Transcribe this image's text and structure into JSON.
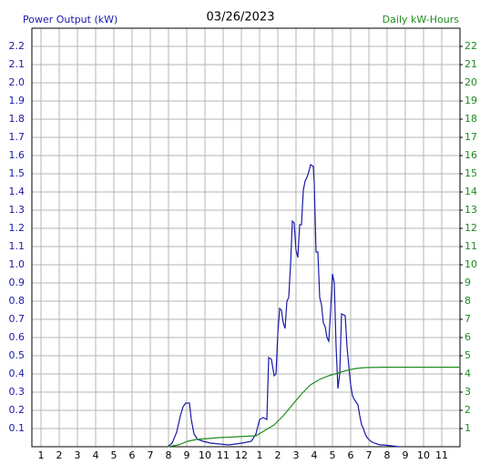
{
  "chart_data": {
    "type": "line",
    "title": "03/26/2023",
    "y_label": "Power Output (kW)",
    "y2_label": "Daily kW-Hours",
    "y_color": "#1a1aa8",
    "y2_color": "#1e8c1e",
    "grid": true,
    "xlim": [
      0.5,
      24
    ],
    "xticks": [
      1,
      2,
      3,
      4,
      5,
      6,
      7,
      8,
      9,
      10,
      11,
      12,
      {
        "value": 13,
        "label": "1"
      },
      {
        "value": 14,
        "label": "2"
      },
      {
        "value": 15,
        "label": "3"
      },
      {
        "value": 16,
        "label": "4"
      },
      {
        "value": 17,
        "label": "5"
      },
      {
        "value": 18,
        "label": "6"
      },
      {
        "value": 19,
        "label": "7"
      },
      {
        "value": 20,
        "label": "8"
      },
      {
        "value": 21,
        "label": "9"
      },
      {
        "value": 22,
        "label": "10"
      },
      {
        "value": 23,
        "label": "11"
      }
    ],
    "ylim": [
      0,
      2.3
    ],
    "yticks": [
      0.1,
      0.2,
      0.3,
      0.4,
      0.5,
      0.6,
      0.7,
      0.8,
      0.9,
      {
        "value": 1.0,
        "label": "1.0"
      },
      1.1,
      1.2,
      1.3,
      1.4,
      1.5,
      1.6,
      1.7,
      1.8,
      1.9,
      {
        "value": 2.0,
        "label": "2.0"
      },
      2.1,
      2.2
    ],
    "y2lim": [
      0,
      23
    ],
    "y2ticks": [
      1,
      2,
      3,
      4,
      5,
      6,
      7,
      8,
      9,
      10,
      11,
      12,
      13,
      14,
      15,
      16,
      17,
      18,
      19,
      20,
      21,
      22
    ],
    "series": [
      {
        "color": "#1a1aa8",
        "axis": "y",
        "x": [
          7.95,
          8.2,
          8.45,
          8.65,
          8.8,
          8.95,
          9.15,
          9.25,
          9.4,
          9.6,
          9.9,
          10.3,
          11.3,
          12.05,
          12.55,
          12.8,
          13.0,
          13.2,
          13.4,
          13.5,
          13.65,
          13.8,
          13.9,
          14.0,
          14.1,
          14.2,
          14.3,
          14.4,
          14.5,
          14.6,
          14.7,
          14.8,
          14.9,
          15.0,
          15.1,
          15.2,
          15.3,
          15.4,
          15.5,
          15.6,
          15.7,
          15.8,
          15.95,
          16.0,
          16.1,
          16.2,
          16.3,
          16.4,
          16.5,
          16.6,
          16.7,
          16.8,
          16.9,
          17.0,
          17.1,
          17.2,
          17.3,
          17.4,
          17.5,
          17.7,
          17.8,
          17.9,
          18.0,
          18.1,
          18.2,
          18.4,
          18.5,
          18.6,
          18.7,
          18.8,
          18.9,
          19.1,
          19.3,
          19.6,
          19.8,
          20.65
        ],
        "values": [
          0,
          0.02,
          0.08,
          0.17,
          0.22,
          0.24,
          0.24,
          0.15,
          0.07,
          0.04,
          0.03,
          0.02,
          0.01,
          0.02,
          0.03,
          0.07,
          0.15,
          0.16,
          0.15,
          0.49,
          0.48,
          0.39,
          0.4,
          0.62,
          0.76,
          0.75,
          0.68,
          0.65,
          0.8,
          0.82,
          1.0,
          1.24,
          1.23,
          1.08,
          1.04,
          1.22,
          1.22,
          1.41,
          1.46,
          1.48,
          1.51,
          1.55,
          1.54,
          1.45,
          1.07,
          1.07,
          0.82,
          0.78,
          0.68,
          0.66,
          0.6,
          0.58,
          0.75,
          0.95,
          0.9,
          0.55,
          0.32,
          0.4,
          0.73,
          0.72,
          0.55,
          0.44,
          0.34,
          0.28,
          0.26,
          0.23,
          0.17,
          0.12,
          0.1,
          0.07,
          0.05,
          0.03,
          0.02,
          0.01,
          0.01,
          0
        ]
      },
      {
        "color": "#1e8c1e",
        "axis": "y2",
        "x": [
          7.95,
          8.55,
          9.05,
          9.55,
          10.8,
          12.8,
          13.3,
          13.8,
          14.3,
          14.8,
          15.3,
          15.8,
          16.3,
          16.8,
          17.3,
          17.8,
          18.3,
          18.8,
          19.8,
          23.95
        ],
        "values": [
          0,
          0.1,
          0.3,
          0.4,
          0.5,
          0.6,
          0.9,
          1.2,
          1.7,
          2.3,
          2.9,
          3.4,
          3.7,
          3.9,
          4.05,
          4.2,
          4.3,
          4.35,
          4.37,
          4.37
        ]
      }
    ]
  }
}
